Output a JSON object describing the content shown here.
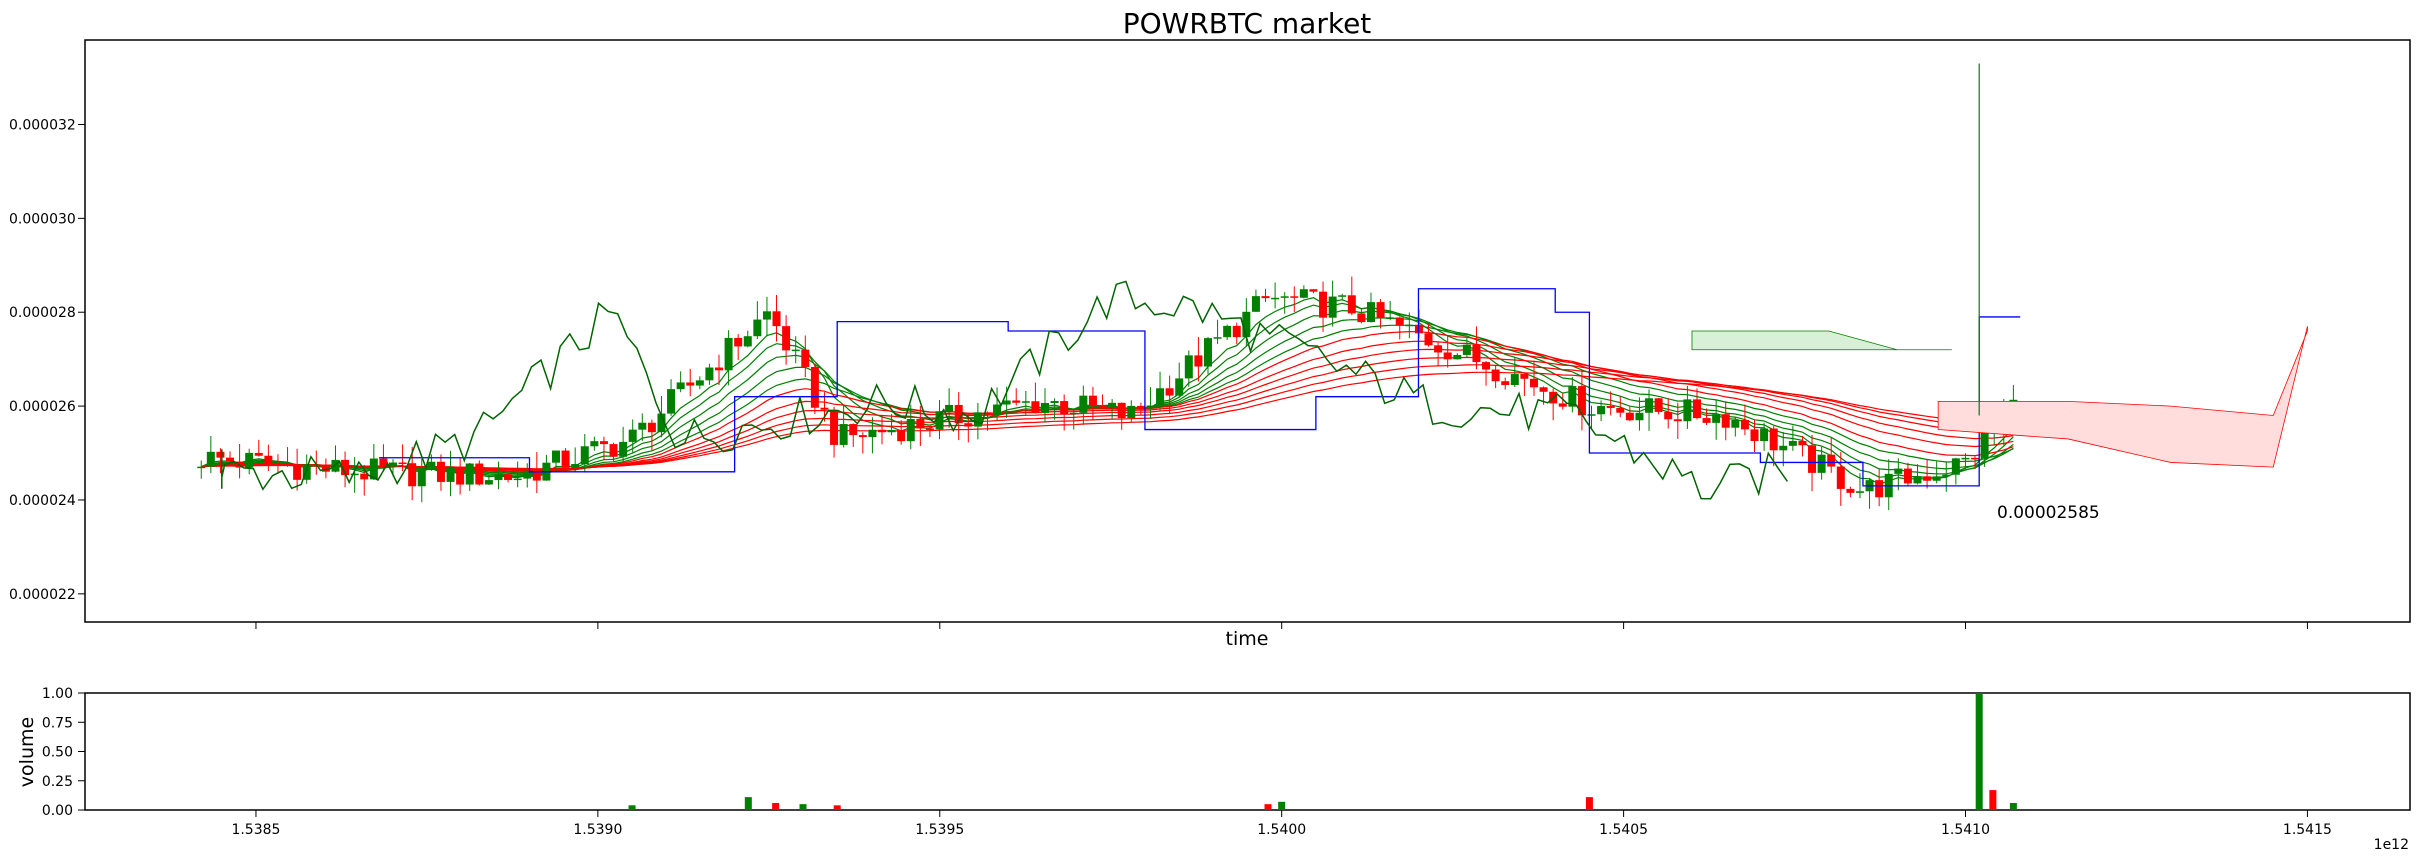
{
  "chart_data": [
    {
      "type": "candlestick",
      "title": "POWRBTC market",
      "xlabel": "time",
      "ylabel": "",
      "x_offset_label": "",
      "xlim": [
        1.53825,
        1.54165
      ],
      "ylim": [
        2.14e-05,
        3.38e-05
      ],
      "yticks": [
        {
          "value": 2.2e-05,
          "label": "0.000022"
        },
        {
          "value": 2.4e-05,
          "label": "0.000024"
        },
        {
          "value": 2.6e-05,
          "label": "0.000026"
        },
        {
          "value": 2.8e-05,
          "label": "0.000028"
        },
        {
          "value": 3e-05,
          "label": "0.000030"
        },
        {
          "value": 3.2e-05,
          "label": "0.000032"
        }
      ],
      "annotation": {
        "x": 1.54108,
        "y": 2.585e-05,
        "text": "0.00002585"
      },
      "colors": {
        "up": "#008000",
        "down": "#ff0000",
        "ribbon_green": "#008000",
        "ribbon_red": "#ff0000",
        "line_blue": "#0000ff",
        "cloud_red": "#ffdddd",
        "cloud_green": "#d8efd8"
      },
      "price_samples": [
        {
          "x": 1.53842,
          "close": 2.49e-05
        },
        {
          "x": 1.53865,
          "close": 2.46e-05
        },
        {
          "x": 1.53888,
          "close": 2.45e-05
        },
        {
          "x": 1.53905,
          "close": 2.53e-05
        },
        {
          "x": 1.53925,
          "close": 2.8e-05
        },
        {
          "x": 1.53935,
          "close": 2.53e-05
        },
        {
          "x": 1.53965,
          "close": 2.61e-05
        },
        {
          "x": 1.53978,
          "close": 2.58e-05
        },
        {
          "x": 1.53998,
          "close": 2.83e-05
        },
        {
          "x": 1.5401,
          "close": 2.81e-05
        },
        {
          "x": 1.54025,
          "close": 2.72e-05
        },
        {
          "x": 1.54045,
          "close": 2.6e-05
        },
        {
          "x": 1.54065,
          "close": 2.58e-05
        },
        {
          "x": 1.54085,
          "close": 2.42e-05
        },
        {
          "x": 1.541,
          "close": 2.48e-05
        },
        {
          "x": 1.54107,
          "close": 2.6e-05
        }
      ]
    },
    {
      "type": "bar",
      "title": "",
      "xlabel": "",
      "ylabel": "volume",
      "x_offset_label": "1e12",
      "xlim": [
        1.53825,
        1.54165
      ],
      "ylim": [
        0,
        1
      ],
      "xticks": [
        {
          "value": 1.5385,
          "label": "1.5385"
        },
        {
          "value": 1.539,
          "label": "1.5390"
        },
        {
          "value": 1.5395,
          "label": "1.5395"
        },
        {
          "value": 1.54,
          "label": "1.5400"
        },
        {
          "value": 1.5405,
          "label": "1.5405"
        },
        {
          "value": 1.541,
          "label": "1.5410"
        },
        {
          "value": 1.5415,
          "label": "1.5415"
        }
      ],
      "yticks": [
        {
          "value": 0.0,
          "label": "0.00"
        },
        {
          "value": 0.25,
          "label": "0.25"
        },
        {
          "value": 0.5,
          "label": "0.50"
        },
        {
          "value": 0.75,
          "label": "0.75"
        },
        {
          "value": 1.0,
          "label": "1.00"
        }
      ],
      "bars": [
        {
          "x": 1.53922,
          "value": 0.11,
          "dir": "up"
        },
        {
          "x": 1.53926,
          "value": 0.06,
          "dir": "down"
        },
        {
          "x": 1.5393,
          "value": 0.05,
          "dir": "up"
        },
        {
          "x": 1.53935,
          "value": 0.04,
          "dir": "down"
        },
        {
          "x": 1.53905,
          "value": 0.04,
          "dir": "up"
        },
        {
          "x": 1.53998,
          "value": 0.05,
          "dir": "down"
        },
        {
          "x": 1.54,
          "value": 0.07,
          "dir": "up"
        },
        {
          "x": 1.54045,
          "value": 0.11,
          "dir": "down"
        },
        {
          "x": 1.54102,
          "value": 1.0,
          "dir": "up"
        },
        {
          "x": 1.54104,
          "value": 0.17,
          "dir": "down"
        },
        {
          "x": 1.54107,
          "value": 0.06,
          "dir": "up"
        }
      ]
    }
  ]
}
